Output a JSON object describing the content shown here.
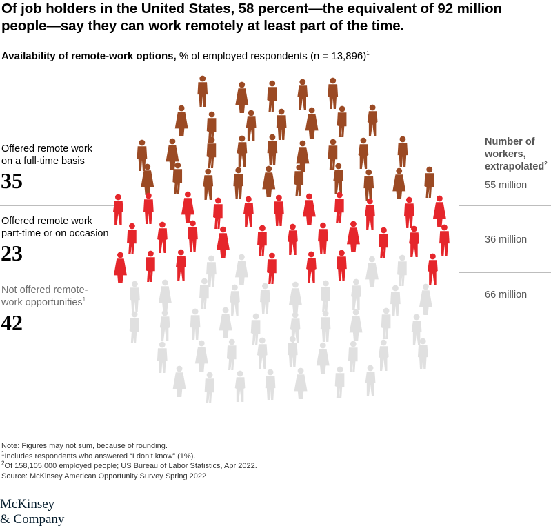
{
  "title": "Of job holders in the United States, 58 percent—the equivalent of 92 million people—say they can work remotely at least part of the time.",
  "subtitle": {
    "bold": "Availability of remote-work options,",
    "rest": " % of employed respondents (n = 13,896)",
    "sup": "1"
  },
  "right_header": {
    "text": "Number of workers, extrapolated",
    "sup": "2"
  },
  "chart_data": {
    "type": "pictogram",
    "title": "Availability of remote-work options",
    "unit": "% of employed respondents (n = 13,896)",
    "categories": [
      {
        "label": "Offered remote work on a full-time basis",
        "label_line1": "Offered remote work",
        "label_line2": "on a full-time basis",
        "value": 35,
        "value_text": "35",
        "workers": "55 million",
        "color": "#9b4a24",
        "icon_count": 38
      },
      {
        "label": "Offered remote work part-time or on occasion",
        "label_line1": "Offered remote work",
        "label_line2": "part-time or on occasion",
        "value": 23,
        "value_text": "23",
        "workers": "36 million",
        "color": "#e5262b",
        "icon_count": 26
      },
      {
        "label": "Not offered remote-work opportunities",
        "label_line1": "Not offered remote-",
        "label_line2": "work opportunities",
        "label_sup": "1",
        "value": 42,
        "value_text": "42",
        "workers": "66 million",
        "color": "#e0e0e0",
        "icon_count": 47
      }
    ]
  },
  "notes": [
    {
      "sup": "",
      "text": "Note: Figures may not sum, because of rounding."
    },
    {
      "sup": "1",
      "text": "Includes respondents who answered “I don’t know” (1%)."
    },
    {
      "sup": "2",
      "text": "Of 158,105,000 employed people; US Bureau of Labor Statistics, Apr 2022."
    },
    {
      "sup": "",
      "text": "Source: McKinsey American Opportunity Survey Spring 2022"
    }
  ],
  "logo": {
    "line1": "McKinsey",
    "line2": "& Company"
  }
}
